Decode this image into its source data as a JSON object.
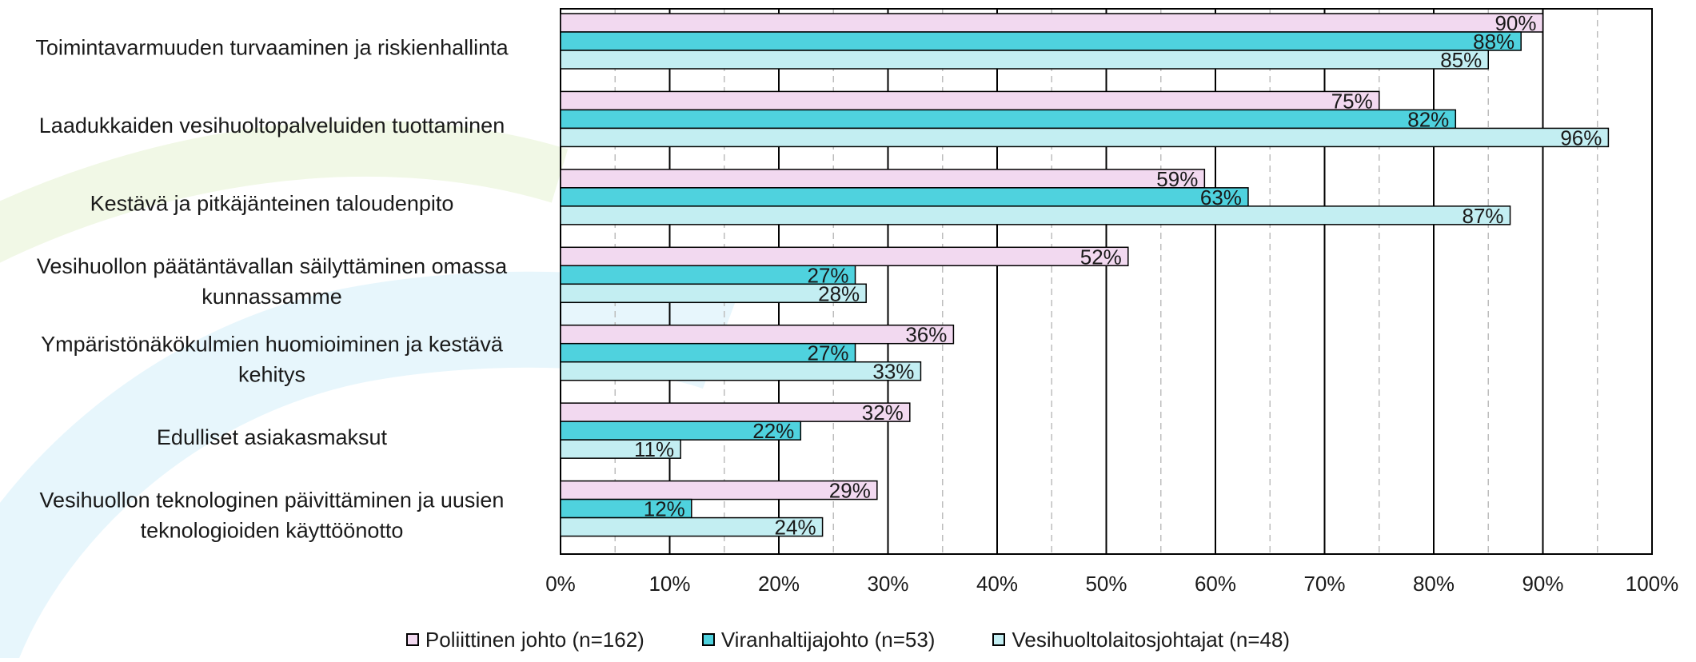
{
  "chart_data": {
    "type": "bar",
    "orientation": "horizontal",
    "categories": [
      "Toimintavarmuuden turvaaminen ja riskienhallinta",
      "Laadukkaiden vesihuoltopalveluiden tuottaminen",
      "Kestävä ja pitkäjänteinen taloudenpito",
      "Vesihuollon päätäntävallan säilyttäminen omassa kunnassamme",
      "Ympäristönäkökulmien huomioiminen ja kestävä kehitys",
      "Edulliset asiakasmaksut",
      "Vesihuollon teknologinen päivittäminen ja uusien teknologioiden käyttöönotto"
    ],
    "category_lines": [
      [
        "Toimintavarmuuden turvaaminen ja riskienhallinta"
      ],
      [
        "Laadukkaiden vesihuoltopalveluiden tuottaminen"
      ],
      [
        "Kestävä ja pitkäjänteinen taloudenpito"
      ],
      [
        "Vesihuollon päätäntävallan säilyttäminen omassa",
        "kunnassamme"
      ],
      [
        "Ympäristönäkökulmien huomioiminen ja kestävä",
        "kehitys"
      ],
      [
        "Edulliset asiakasmaksut"
      ],
      [
        "Vesihuollon teknologinen päivittäminen ja uusien",
        "teknologioiden käyttöönotto"
      ]
    ],
    "series": [
      {
        "name": "Poliittinen johto (n=162)",
        "color": "#f2d9f0",
        "values": [
          90,
          75,
          59,
          52,
          36,
          32,
          29
        ]
      },
      {
        "name": "Viranhaltijajohto (n=53)",
        "color": "#4fd2de",
        "values": [
          88,
          82,
          63,
          27,
          27,
          22,
          12
        ]
      },
      {
        "name": "Vesihuoltolaitosjohtajat (n=48)",
        "color": "#c3eef2",
        "values": [
          85,
          96,
          87,
          28,
          33,
          11,
          24
        ]
      }
    ],
    "xlim": [
      0,
      100
    ],
    "x_ticks": [
      "0%",
      "10%",
      "20%",
      "30%",
      "40%",
      "50%",
      "60%",
      "70%",
      "80%",
      "90%",
      "100%"
    ],
    "value_suffix": "%",
    "grid": true,
    "legend_position": "bottom",
    "title": "",
    "xlabel": "",
    "ylabel": ""
  }
}
